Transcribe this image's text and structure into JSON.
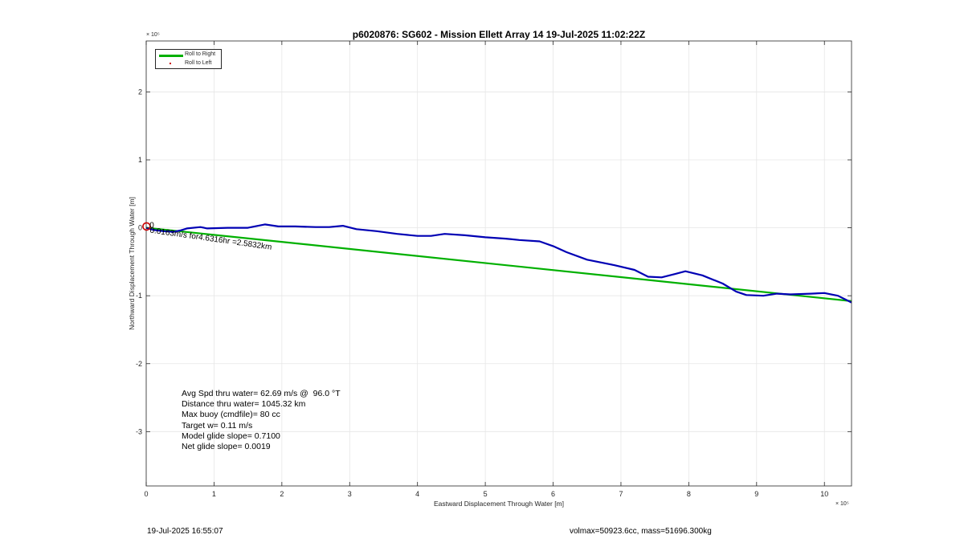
{
  "chart_data": {
    "type": "line",
    "title": "p6020876: SG602 - Mission Ellett Array 14 19-Jul-2025 11:02:22Z",
    "xlabel": "Eastward Displacement Through Water [m]",
    "ylabel": "Northward Displacement Through Water [m]",
    "x_exponent": "× 10⁵",
    "y_exponent": "× 10⁵",
    "xlim": [
      0,
      10.4
    ],
    "ylim": [
      -3.8,
      2.75
    ],
    "x_scale_factor": 100000,
    "y_scale_factor": 100000,
    "xticks": [
      0,
      1,
      2,
      3,
      4,
      5,
      6,
      7,
      8,
      9,
      10
    ],
    "yticks": [
      2,
      1,
      0,
      -1,
      -2,
      -3
    ],
    "grid": true,
    "legend": {
      "position": "top-left",
      "entries": [
        {
          "label": "Roll to Right",
          "color": "#00b000",
          "style": "line"
        },
        {
          "label": "Roll to Left",
          "color": "#cc0000",
          "style": "dot"
        }
      ]
    },
    "series": [
      {
        "color": "#00b000",
        "x": [
          0,
          10.4
        ],
        "y": [
          0,
          -1.08
        ]
      },
      {
        "color": "#0000b4",
        "x": [
          0,
          0.1,
          0.25,
          0.4,
          0.5,
          0.6,
          0.8,
          0.9,
          1.2,
          1.5,
          1.75,
          1.95,
          2.2,
          2.5,
          2.7,
          2.9,
          3.1,
          3.4,
          3.7,
          4.0,
          4.2,
          4.4,
          4.7,
          5.0,
          5.3,
          5.5,
          5.8,
          6.0,
          6.2,
          6.5,
          6.9,
          7.2,
          7.4,
          7.6,
          7.8,
          7.95,
          8.2,
          8.5,
          8.7,
          8.85,
          9.1,
          9.3,
          9.5,
          9.8,
          10.0,
          10.2,
          10.4
        ],
        "y": [
          0,
          -0.03,
          -0.05,
          -0.06,
          -0.04,
          -0.01,
          0.01,
          -0.01,
          0.0,
          0.0,
          0.05,
          0.02,
          0.02,
          0.01,
          0.01,
          0.03,
          -0.02,
          -0.05,
          -0.09,
          -0.12,
          -0.12,
          -0.09,
          -0.11,
          -0.14,
          -0.16,
          -0.18,
          -0.2,
          -0.27,
          -0.36,
          -0.47,
          -0.55,
          -0.62,
          -0.72,
          -0.73,
          -0.68,
          -0.64,
          -0.7,
          -0.82,
          -0.94,
          -0.99,
          -1.0,
          -0.97,
          -0.98,
          -0.97,
          -0.96,
          -1.0,
          -1.1
        ]
      }
    ],
    "markers": [
      {
        "type": "start-circle",
        "x": 0.005,
        "y": 0.02,
        "color": "#cc0000"
      }
    ],
    "annotations": [
      {
        "text": "0.0163m/s for4.6316hr =2.5832km",
        "x": 0.05,
        "y": -0.07,
        "rotation": 8
      },
      {
        "text": "0",
        "x": 0.05,
        "y": 0.0,
        "rotation": 0
      }
    ]
  },
  "stats": [
    "Avg Spd thru water= 62.69 m/s @  96.0 °T",
    "Distance thru water= 1045.32 km",
    "Max buoy (cmdfile)= 80 cc",
    "Target w= 0.11 m/s",
    "Model glide slope= 0.7100",
    "Net glide slope= 0.0019"
  ],
  "footer": {
    "timestamp": "19-Jul-2025 16:55:07",
    "mass_info": "volmax=50923.6cc, mass=51696.300kg"
  }
}
